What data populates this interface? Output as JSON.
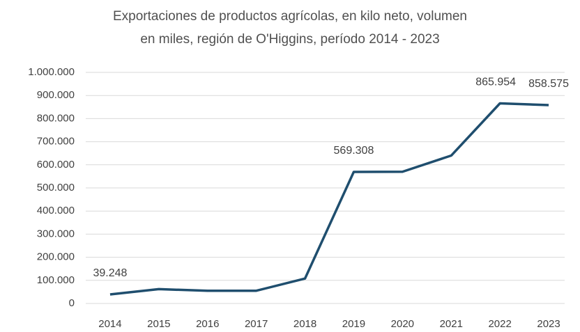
{
  "chart_data": {
    "type": "line",
    "title": [
      "Exportaciones de productos agrícolas, en kilo neto, volumen",
      "en miles, región de O'Higgins, período 2014 - 2023"
    ],
    "categories": [
      "2014",
      "2015",
      "2016",
      "2017",
      "2018",
      "2019",
      "2020",
      "2021",
      "2022",
      "2023"
    ],
    "series": [
      {
        "name": "Exportaciones",
        "color": "#1f4e6e",
        "values": [
          39248,
          62000,
          55000,
          55000,
          108000,
          569308,
          570000,
          640000,
          865954,
          858575
        ],
        "value_labels": [
          "39.248",
          null,
          null,
          null,
          null,
          "569.308",
          null,
          null,
          "865.954",
          "858.575"
        ]
      }
    ],
    "ylim": [
      0,
      1000000
    ],
    "yticks": [
      0,
      {
        "value": 100000,
        "label": "100.000"
      },
      {
        "value": 200000,
        "label": "200.000"
      },
      {
        "value": 300000,
        "label": "300.000"
      },
      {
        "value": 400000,
        "label": "400.000"
      },
      {
        "value": 500000,
        "label": "500.000"
      },
      {
        "value": 600000,
        "label": "600.000"
      },
      {
        "value": 700000,
        "label": "700.000"
      },
      {
        "value": 800000,
        "label": "800.000"
      },
      {
        "value": 900000,
        "label": "900.000"
      },
      {
        "value": 1000000,
        "label": "1.000.000"
      }
    ],
    "grid": true
  }
}
